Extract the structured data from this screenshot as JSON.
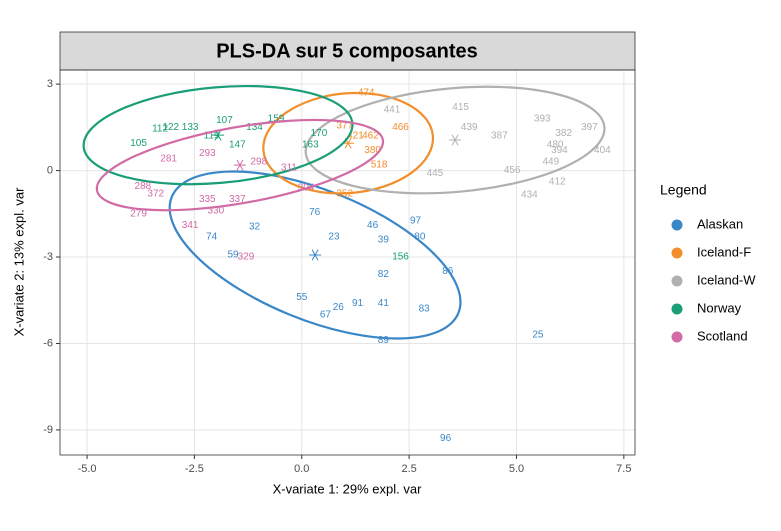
{
  "chart_data": {
    "type": "scatter",
    "title": "PLS-DA sur 5 composantes",
    "x_label": "X-variate 1: 29% expl. var",
    "y_label": "X-variate 2: 13% expl. var",
    "legend_title": "Legend",
    "legend_position": "right",
    "grid": true,
    "xlim": [
      -5.63,
      7.76
    ],
    "ylim": [
      -9.87,
      3.49
    ],
    "xticks": [
      {
        "value": -5,
        "label": "-5.0"
      },
      {
        "value": -2.5,
        "label": "-2.5"
      },
      {
        "value": 0,
        "label": "0.0"
      },
      {
        "value": 2.5,
        "label": "2.5"
      },
      {
        "value": 5,
        "label": "5.0"
      },
      {
        "value": 7.5,
        "label": "7.5"
      }
    ],
    "yticks": [
      3,
      0,
      -3,
      -6,
      -9
    ],
    "series": [
      {
        "name": "Alaskan",
        "color": "#3a87c8",
        "labels": [
          "96",
          "25",
          "89",
          "83",
          "41",
          "91",
          "67",
          "26",
          "82",
          "86",
          "39",
          "80",
          "97",
          "76",
          "23",
          "59",
          "74",
          "55",
          "46",
          "32"
        ],
        "x": [
          3.35,
          5.5,
          1.9,
          2.85,
          1.9,
          1.3,
          0.55,
          0.85,
          1.9,
          3.4,
          1.9,
          2.75,
          2.65,
          0.3,
          0.75,
          -1.6,
          -2.1,
          0,
          1.65,
          -1.1
        ],
        "y": [
          -9.3,
          -5.7,
          -5.9,
          -4.8,
          -4.6,
          -4.6,
          -5.0,
          -4.75,
          -3.6,
          -3.5,
          -2.4,
          -2.3,
          -1.75,
          -1.45,
          -2.3,
          -2.93,
          -2.3,
          -4.4,
          -1.9,
          -1.95
        ],
        "ellipse": {
          "center": [
            0.31,
            -2.93
          ],
          "radii": [
            3.6,
            2.25
          ],
          "angle": 22
        }
      },
      {
        "name": "Iceland-F",
        "color": "#f28e2b",
        "labels": [
          "474",
          "377",
          "421",
          "518",
          "462",
          "352",
          "380",
          "466"
        ],
        "x": [
          1.5,
          1.0,
          1.25,
          1.8,
          1.6,
          1.0,
          1.65,
          2.3
        ],
        "y": [
          2.7,
          1.55,
          1.2,
          0.2,
          1.2,
          -0.8,
          0.7,
          1.5
        ],
        "ellipse": {
          "center": [
            1.08,
            0.95
          ],
          "radii": [
            1.98,
            1.73
          ],
          "angle": -5
        }
      },
      {
        "name": "Iceland-W",
        "color": "#b0b0b0",
        "labels": [
          "415",
          "397",
          "404",
          "434",
          "441",
          "394",
          "449",
          "439",
          "382",
          "393",
          "445",
          "480",
          "456",
          "387",
          "412"
        ],
        "x": [
          3.7,
          6.7,
          7.0,
          5.3,
          2.1,
          6.0,
          5.8,
          3.9,
          6.1,
          5.6,
          3.1,
          5.9,
          4.9,
          4.6,
          5.95
        ],
        "y": [
          2.2,
          1.5,
          0.7,
          -0.85,
          2.1,
          0.7,
          0.3,
          1.5,
          1.3,
          1.8,
          -0.1,
          0.9,
          0.0,
          1.2,
          -0.4
        ],
        "ellipse": {
          "center": [
            3.57,
            1.06
          ],
          "radii": [
            3.49,
            1.8
          ],
          "angle": -5
        }
      },
      {
        "name": "Norway",
        "color": "#1a9e77",
        "labels": [
          "107",
          "112",
          "122",
          "133",
          "134",
          "159",
          "156",
          "105",
          "170",
          "119",
          "147",
          "163"
        ],
        "x": [
          -1.8,
          -3.3,
          -3.05,
          -2.6,
          -1.1,
          -0.6,
          2.3,
          -3.8,
          0.4,
          -2.1,
          -1.5,
          0.2
        ],
        "y": [
          1.75,
          1.45,
          1.5,
          1.5,
          1.5,
          1.8,
          -3.0,
          0.95,
          1.3,
          1.2,
          0.9,
          0.9
        ],
        "ellipse": {
          "center": [
            -1.95,
            1.23
          ],
          "radii": [
            3.14,
            1.66
          ],
          "angle": -5
        }
      },
      {
        "name": "Scotland",
        "color": "#d16ba5",
        "labels": [
          "279",
          "341",
          "288",
          "335",
          "330",
          "337",
          "329",
          "304",
          "372",
          "281",
          "298",
          "311",
          "293"
        ],
        "x": [
          -3.8,
          -2.6,
          -3.7,
          -2.2,
          -2.0,
          -1.5,
          -1.3,
          0.1,
          -3.4,
          -3.1,
          -1.0,
          -0.3,
          -2.2
        ],
        "y": [
          -1.5,
          -1.9,
          -0.55,
          -1.0,
          -1.4,
          -1.0,
          -3.0,
          -0.6,
          -0.8,
          0.4,
          0.3,
          0.1,
          0.6
        ],
        "ellipse": {
          "center": [
            -1.44,
            0.19
          ],
          "radii": [
            3.38,
            1.32
          ],
          "angle": -10
        }
      }
    ]
  }
}
